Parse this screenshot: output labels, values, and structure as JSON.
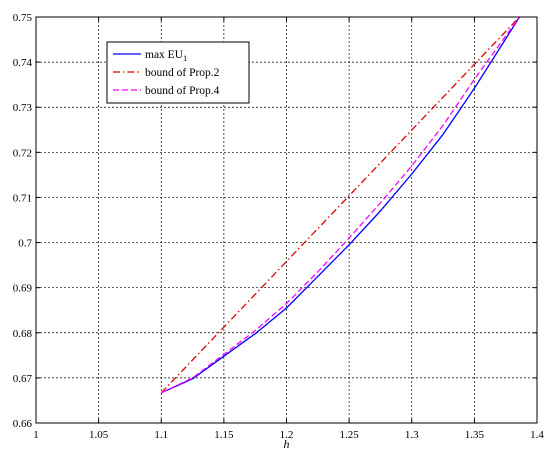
{
  "chart_data": {
    "type": "line",
    "title": "",
    "xlabel": "h",
    "ylabel": "",
    "xlim": [
      1,
      1.4
    ],
    "ylim": [
      0.66,
      0.75
    ],
    "x_ticks": [
      "1",
      "1.05",
      "1.1",
      "1.15",
      "1.2",
      "1.25",
      "1.3",
      "1.35",
      "1.4"
    ],
    "y_ticks": [
      "0.66",
      "0.67",
      "0.68",
      "0.69",
      "0.7",
      "0.71",
      "0.72",
      "0.73",
      "0.74",
      "0.75"
    ],
    "grid": true,
    "legend_position": "top-left",
    "series": [
      {
        "name": "max EU",
        "name_sub": "1",
        "color": "#0000ff",
        "style": "solid",
        "x": [
          1.1,
          1.125,
          1.15,
          1.175,
          1.2,
          1.225,
          1.25,
          1.275,
          1.3,
          1.325,
          1.35,
          1.386
        ],
        "y": [
          0.6667,
          0.6698,
          0.6748,
          0.6798,
          0.6855,
          0.6925,
          0.6995,
          0.707,
          0.7152,
          0.724,
          0.7342,
          0.75
        ]
      },
      {
        "name": "bound of Prop.2",
        "color": "#dd0000",
        "style": "dashdot",
        "x": [
          1.1,
          1.386
        ],
        "y": [
          0.6667,
          0.75
        ]
      },
      {
        "name": "bound of Prop.4",
        "color": "#ff00ff",
        "style": "dashed",
        "x": [
          1.1,
          1.125,
          1.15,
          1.175,
          1.2,
          1.225,
          1.25,
          1.275,
          1.3,
          1.325,
          1.35,
          1.386
        ],
        "y": [
          0.6667,
          0.67,
          0.6752,
          0.6805,
          0.6865,
          0.6935,
          0.701,
          0.7088,
          0.717,
          0.726,
          0.7362,
          0.75
        ]
      }
    ]
  }
}
